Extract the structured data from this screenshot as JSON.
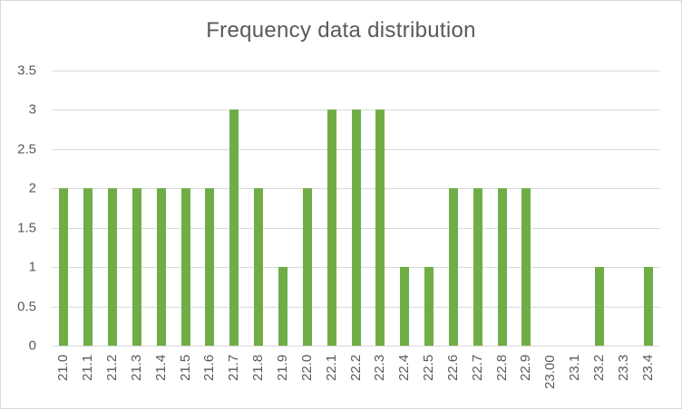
{
  "chart_data": {
    "type": "bar",
    "title": "Frequency data distribution",
    "xlabel": "",
    "ylabel": "",
    "ylim": [
      0,
      3.5
    ],
    "yticks": [
      "0",
      "0.5",
      "1",
      "1.5",
      "2",
      "2.5",
      "3",
      "3.5"
    ],
    "grid": true,
    "legend": null,
    "color": "#70ad47",
    "categories": [
      "21.0",
      "21.1",
      "21.2",
      "21.3",
      "21.4",
      "21.5",
      "21.6",
      "21.7",
      "21.8",
      "21.9",
      "22.0",
      "22.1",
      "22.2",
      "22.3",
      "22.4",
      "22.5",
      "22.6",
      "22.7",
      "22.8",
      "22.9",
      "23.00",
      "23.1",
      "23.2",
      "23.3",
      "23.4"
    ],
    "values": [
      2,
      2,
      2,
      2,
      2,
      2,
      2,
      3,
      2,
      1,
      2,
      3,
      3,
      3,
      1,
      1,
      2,
      2,
      2,
      2,
      0,
      0,
      1,
      0,
      1
    ]
  }
}
